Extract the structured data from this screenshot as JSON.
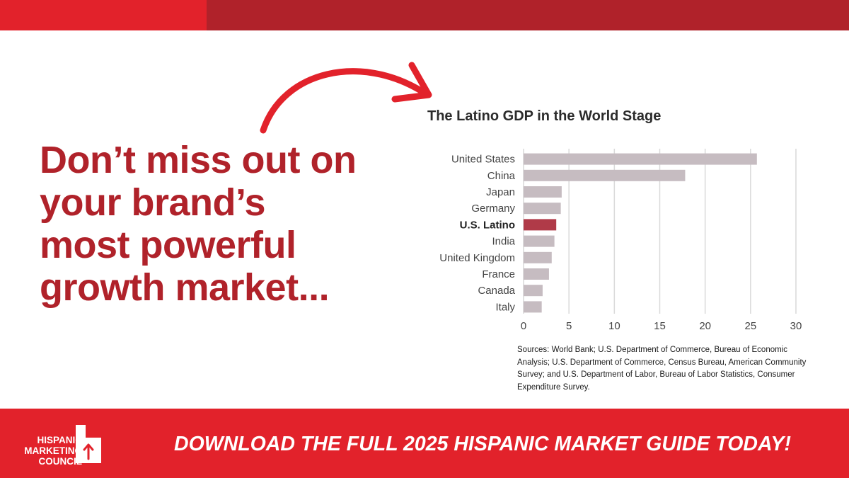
{
  "headline": {
    "lines": [
      "Don’t miss out on",
      "your brand’s",
      "most powerful",
      "growth market..."
    ]
  },
  "colors": {
    "brand_red": "#e2222b",
    "dark_red": "#b0222a",
    "bar_default": "#c6bcc1",
    "bar_highlight": "#b03a48"
  },
  "icons": {
    "arrow": "curved-arrow-icon",
    "logo": "hmc-logo-icon"
  },
  "chart_data": {
    "type": "bar",
    "orientation": "horizontal",
    "title": "The Latino GDP in the World Stage",
    "categories": [
      "United States",
      "China",
      "Japan",
      "Germany",
      "U.S. Latino",
      "India",
      "United Kingdom",
      "France",
      "Canada",
      "Italy"
    ],
    "values": [
      25.7,
      17.8,
      4.2,
      4.1,
      3.6,
      3.4,
      3.1,
      2.8,
      2.1,
      2.0
    ],
    "highlight": "U.S. Latino",
    "xticks": [
      0,
      5,
      10,
      15,
      20,
      25,
      30
    ],
    "xlim": [
      0,
      30
    ],
    "grid": "vertical"
  },
  "sources": "Sources: World Bank; U.S. Department of Commerce, Bureau of Economic Analysis; U.S. Department of Commerce, Census Bureau, American Community Survey; and U.S. Department of Labor, Bureau of Labor Statistics, Consumer Expenditure Survey.",
  "footer": {
    "logo_lines": [
      "HISPANIC",
      "MARKETING",
      "COUNCIL"
    ],
    "cta": "DOWNLOAD THE FULL 2025 HISPANIC MARKET GUIDE TODAY!"
  }
}
